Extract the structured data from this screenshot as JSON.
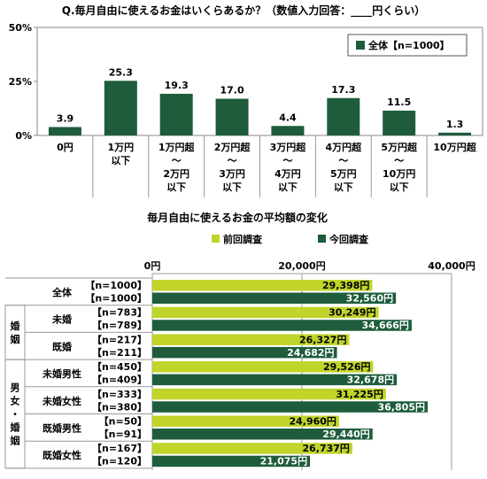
{
  "chart_data": [
    {
      "type": "bar",
      "title": "Q.毎月自由に使えるお金はいくらあるか？（数値入力回答：____円くらい）",
      "categories": [
        [
          "0円"
        ],
        [
          "1万円",
          "以下"
        ],
        [
          "1万円超",
          "～",
          "2万円",
          "以下"
        ],
        [
          "2万円超",
          "～",
          "3万円",
          "以下"
        ],
        [
          "3万円超",
          "～",
          "4万円",
          "以下"
        ],
        [
          "4万円超",
          "～",
          "5万円",
          "以下"
        ],
        [
          "5万円超",
          "～",
          "10万円",
          "以下"
        ],
        [
          "10万円超"
        ]
      ],
      "series": [
        {
          "name": "全体【n=1000】",
          "values": [
            3.9,
            25.3,
            19.3,
            17.0,
            4.4,
            17.3,
            11.5,
            1.3
          ]
        }
      ],
      "value_labels": [
        "3.9",
        "25.3",
        "19.3",
        "17.0",
        "4.4",
        "17.3",
        "11.5",
        "1.3"
      ],
      "yticks": [
        "0%",
        "25%",
        "50%"
      ],
      "ylim": [
        0,
        50
      ],
      "legend_position": "top-right",
      "color": "#1e5c3c"
    },
    {
      "type": "bar",
      "orientation": "horizontal",
      "title": "毎月自由に使えるお金の平均額の変化",
      "xticks": [
        {
          "value": 0,
          "label": "0円"
        },
        {
          "value": 20000,
          "label": "20,000円"
        },
        {
          "value": 40000,
          "label": "40,000円"
        }
      ],
      "xlim": [
        0,
        40000
      ],
      "legend": [
        {
          "name": "前回調査",
          "color": "#c0d42a"
        },
        {
          "name": "今回調査",
          "color": "#1e5c3c"
        }
      ],
      "group_labels": [
        {
          "text": "婚姻",
          "rows": [
            1,
            2
          ]
        },
        {
          "text": "男女・婚姻",
          "rows": [
            3,
            6
          ]
        }
      ],
      "rows": [
        {
          "label": "全体",
          "n_prev": "【n=1000】",
          "n_curr": "【n=1000】",
          "prev": 29398,
          "curr": 32560,
          "prev_label": "29,398円",
          "curr_label": "32,560円"
        },
        {
          "label": "未婚",
          "n_prev": "【n=783】",
          "n_curr": "【n=789】",
          "prev": 30249,
          "curr": 34666,
          "prev_label": "30,249円",
          "curr_label": "34,666円"
        },
        {
          "label": "既婚",
          "n_prev": "【n=217】",
          "n_curr": "【n=211】",
          "prev": 26327,
          "curr": 24682,
          "prev_label": "26,327円",
          "curr_label": "24,682円"
        },
        {
          "label": "未婚男性",
          "n_prev": "【n=450】",
          "n_curr": "【n=409】",
          "prev": 29526,
          "curr": 32678,
          "prev_label": "29,526円",
          "curr_label": "32,678円"
        },
        {
          "label": "未婚女性",
          "n_prev": "【n=333】",
          "n_curr": "【n=380】",
          "prev": 31225,
          "curr": 36805,
          "prev_label": "31,225円",
          "curr_label": "36,805円"
        },
        {
          "label": "既婚男性",
          "n_prev": "【n=50】",
          "n_curr": "【n=91】",
          "prev": 24960,
          "curr": 29440,
          "prev_label": "24,960円",
          "curr_label": "29,440円"
        },
        {
          "label": "既婚女性",
          "n_prev": "【n=167】",
          "n_curr": "【n=120】",
          "prev": 26737,
          "curr": 21075,
          "prev_label": "26,737円",
          "curr_label": "21,075円"
        }
      ]
    }
  ]
}
